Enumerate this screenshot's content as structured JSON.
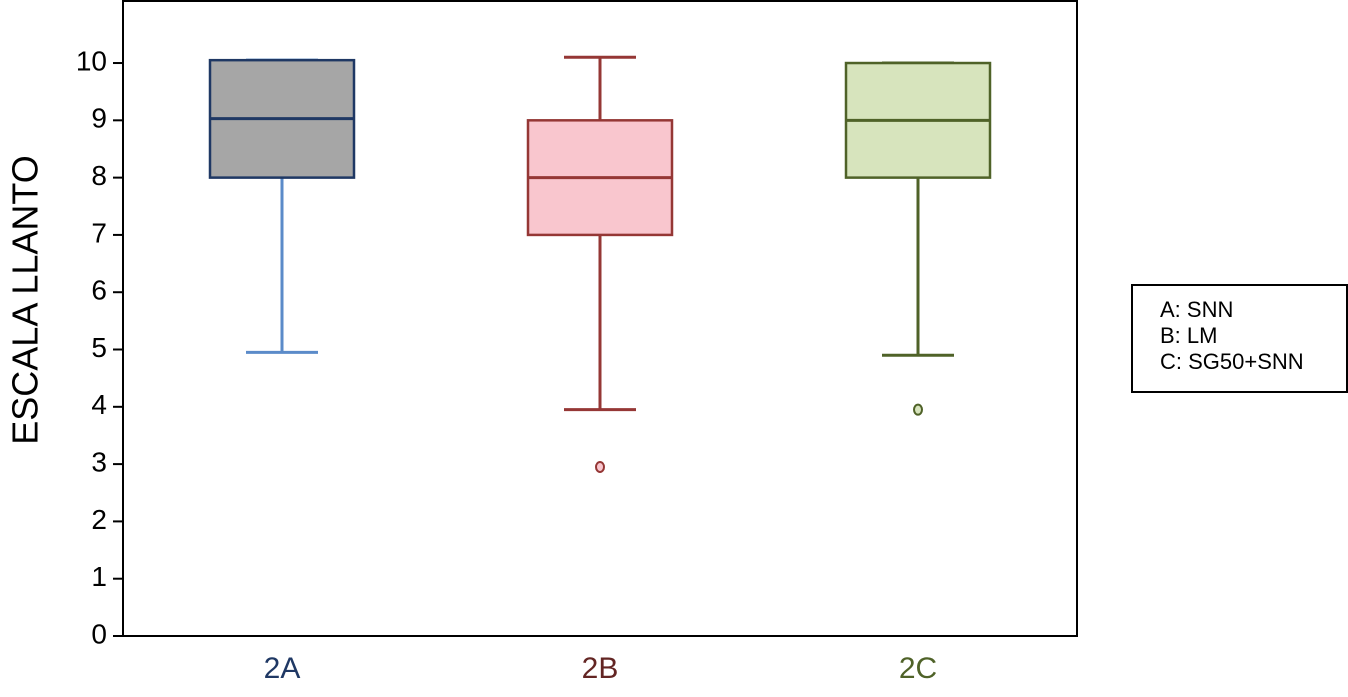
{
  "chart_data": {
    "type": "box",
    "ylabel": "ESCALA LLANTO",
    "categories": [
      "2A",
      "2B",
      "2C"
    ],
    "category_colors": [
      "#1f3864",
      "#632523",
      "#4f6228"
    ],
    "boxes": [
      {
        "whislo": 4.95,
        "q1": 8,
        "med": 9.03,
        "q3": 10.05,
        "whishi": 10.05,
        "fliers": [],
        "fill": "#a6a6a6",
        "stroke": "#1f3864",
        "whisker_color": "#5b8bc9"
      },
      {
        "whislo": 3.95,
        "q1": 7,
        "med": 8,
        "q3": 9,
        "whishi": 10.1,
        "fliers": [
          2.95
        ],
        "fill": "#f9c6ce",
        "stroke": "#953735",
        "whisker_color": "#953735"
      },
      {
        "whislo": 4.9,
        "q1": 8,
        "med": 9,
        "q3": 10,
        "whishi": 10,
        "fliers": [
          3.95
        ],
        "fill": "#d7e4bd",
        "stroke": "#4f6228",
        "whisker_color": "#4f6228"
      }
    ],
    "ylim": [
      0,
      11.1
    ],
    "yticks": [
      0,
      1,
      2,
      3,
      4,
      5,
      6,
      7,
      8,
      9,
      10
    ],
    "legend_text": [
      "A: SNN",
      "B: LM",
      "C: SG50+SNN"
    ]
  }
}
